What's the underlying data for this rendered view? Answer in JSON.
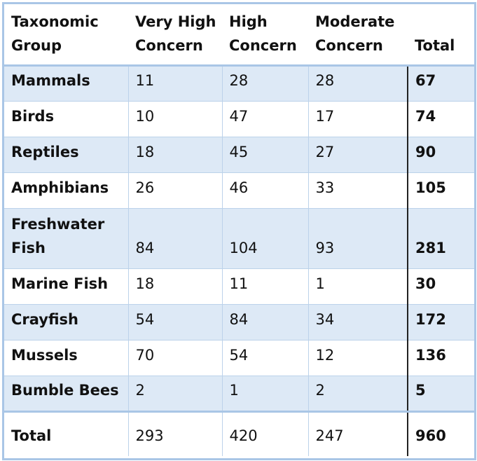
{
  "table": {
    "headers": [
      [
        "Taxonomic",
        "Group"
      ],
      [
        "Very High",
        "Concern"
      ],
      [
        "High",
        "Concern"
      ],
      [
        "Moderate",
        "Concern"
      ],
      [
        "",
        "Total"
      ]
    ],
    "rows": [
      {
        "group": "Mammals",
        "very_high": "11",
        "high": "28",
        "moderate": "28",
        "total": "67"
      },
      {
        "group": "Birds",
        "very_high": "10",
        "high": "47",
        "moderate": "17",
        "total": "74"
      },
      {
        "group": "Reptiles",
        "very_high": "18",
        "high": "45",
        "moderate": "27",
        "total": "90"
      },
      {
        "group": "Amphibians",
        "very_high": "26",
        "high": "46",
        "moderate": "33",
        "total": "105"
      },
      {
        "group": "Freshwater Fish",
        "very_high": "84",
        "high": "104",
        "moderate": "93",
        "total": "281"
      },
      {
        "group": "Marine Fish",
        "very_high": "18",
        "high": "11",
        "moderate": "1",
        "total": "30"
      },
      {
        "group": "Crayfish",
        "very_high": "54",
        "high": "84",
        "moderate": "34",
        "total": "172"
      },
      {
        "group": "Mussels",
        "very_high": "70",
        "high": "54",
        "moderate": "12",
        "total": "136"
      },
      {
        "group": "Bumble Bees",
        "very_high": "2",
        "high": "1",
        "moderate": "2",
        "total": "5"
      }
    ],
    "footer": {
      "group": "Total",
      "very_high": "293",
      "high": "420",
      "moderate": "247",
      "total": "960"
    }
  }
}
